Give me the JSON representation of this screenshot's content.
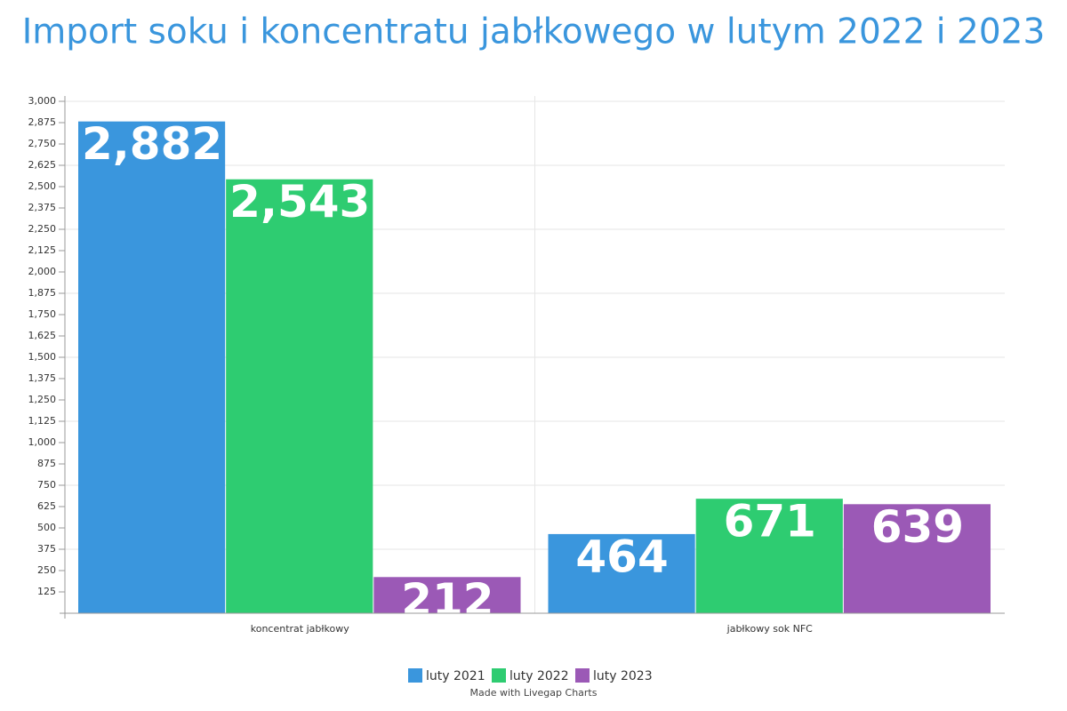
{
  "chart_data": {
    "type": "bar",
    "title": "Import soku i koncentratu jabłkowego w lutym 2022 i 2023",
    "categories": [
      "koncentrat jabłkowy",
      "jabłkowy sok NFC"
    ],
    "series": [
      {
        "name": "luty 2021",
        "color": "#3a96dd",
        "values": [
          2882,
          464
        ],
        "value_labels": [
          "2,882",
          "464"
        ]
      },
      {
        "name": "luty 2022",
        "color": "#2ecc71",
        "values": [
          2543,
          671
        ],
        "value_labels": [
          "2,543",
          "671"
        ]
      },
      {
        "name": "luty 2023",
        "color": "#9b59b6",
        "values": [
          212,
          639
        ],
        "value_labels": [
          "212",
          "639"
        ]
      }
    ],
    "ylim": [
      0,
      3000
    ],
    "yticks": [
      125,
      250,
      375,
      500,
      625,
      750,
      875,
      {
        "value": 1000,
        "label": "1,000"
      },
      {
        "value": 1125,
        "label": "1,125"
      },
      {
        "value": 1250,
        "label": "1,250"
      },
      {
        "value": 1375,
        "label": "1,375"
      },
      {
        "value": 1500,
        "label": "1,500"
      },
      {
        "value": 1625,
        "label": "1,625"
      },
      {
        "value": 1750,
        "label": "1,750"
      },
      {
        "value": 1875,
        "label": "1,875"
      },
      {
        "value": 2000,
        "label": "2,000"
      },
      {
        "value": 2125,
        "label": "2,125"
      },
      {
        "value": 2250,
        "label": "2,250"
      },
      {
        "value": 2375,
        "label": "2,375"
      },
      {
        "value": 2500,
        "label": "2,500"
      },
      {
        "value": 2625,
        "label": "2,625"
      },
      {
        "value": 2750,
        "label": "2,750"
      },
      {
        "value": 2875,
        "label": "2,875"
      },
      {
        "value": 3000,
        "label": "3,000"
      }
    ],
    "grid": true,
    "legend": "bottom",
    "credit": "Made with Livegap Charts"
  }
}
